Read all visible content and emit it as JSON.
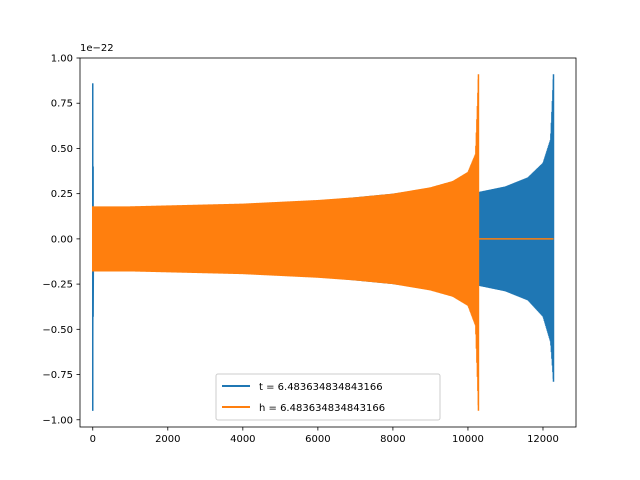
{
  "chart_data": {
    "type": "line",
    "title": "",
    "xlabel": "",
    "ylabel": "",
    "y_offset_label": "1e−22",
    "xlim": [
      -340,
      12880
    ],
    "ylim": [
      -1.04,
      1.0
    ],
    "xticks": [
      0,
      2000,
      4000,
      6000,
      8000,
      10000,
      12000
    ],
    "xtick_labels": [
      "0",
      "2000",
      "4000",
      "6000",
      "8000",
      "10000",
      "12000"
    ],
    "yticks": [
      1.0,
      0.75,
      0.5,
      0.25,
      0.0,
      -0.25,
      -0.5,
      -0.75,
      -1.0
    ],
    "ytick_labels": [
      "1.00",
      "0.75",
      "0.50",
      "0.25",
      "0.00",
      "−0.25",
      "−0.50",
      "−0.75",
      "−1.00"
    ],
    "grid": false,
    "legend_position": "lower center",
    "series": [
      {
        "name": "t = 6.483634834843166",
        "color": "#1f77b4",
        "description_envelope": "oscillating chirp; initial spike near x=0 reaching about +0.86 and -0.95, then envelope grows to a final spike at x about 12280",
        "upper": [
          [
            0,
            0.86
          ],
          [
            20,
            0.17
          ],
          [
            2000,
            0.18
          ],
          [
            4000,
            0.19
          ],
          [
            6000,
            0.21
          ],
          [
            8000,
            0.25
          ],
          [
            9000,
            0.28
          ],
          [
            10000,
            0.26
          ],
          [
            10300,
            0.26
          ],
          [
            11000,
            0.29
          ],
          [
            11600,
            0.34
          ],
          [
            12000,
            0.42
          ],
          [
            12200,
            0.55
          ],
          [
            12280,
            0.91
          ]
        ],
        "lower": [
          [
            0,
            -0.95
          ],
          [
            20,
            -0.17
          ],
          [
            2000,
            -0.18
          ],
          [
            4000,
            -0.19
          ],
          [
            6000,
            -0.21
          ],
          [
            8000,
            -0.25
          ],
          [
            9000,
            -0.28
          ],
          [
            10000,
            -0.26
          ],
          [
            10300,
            -0.26
          ],
          [
            11000,
            -0.29
          ],
          [
            11600,
            -0.34
          ],
          [
            12000,
            -0.43
          ],
          [
            12200,
            -0.57
          ],
          [
            12280,
            -0.79
          ]
        ],
        "flat_after": null
      },
      {
        "name": "h = 6.483634834843166",
        "color": "#ff7f0e",
        "description_envelope": "oscillating chirp from x=0 to about x=10280 with envelope growing to a final spike, then flat at 0 until about x=12280",
        "upper": [
          [
            0,
            0.18
          ],
          [
            1000,
            0.18
          ],
          [
            2000,
            0.185
          ],
          [
            3000,
            0.19
          ],
          [
            4000,
            0.195
          ],
          [
            5000,
            0.205
          ],
          [
            6000,
            0.215
          ],
          [
            7000,
            0.23
          ],
          [
            8000,
            0.25
          ],
          [
            9000,
            0.285
          ],
          [
            9600,
            0.32
          ],
          [
            10000,
            0.37
          ],
          [
            10200,
            0.47
          ],
          [
            10280,
            0.91
          ]
        ],
        "lower": [
          [
            0,
            -0.18
          ],
          [
            1000,
            -0.18
          ],
          [
            2000,
            -0.185
          ],
          [
            3000,
            -0.19
          ],
          [
            4000,
            -0.195
          ],
          [
            5000,
            -0.205
          ],
          [
            6000,
            -0.215
          ],
          [
            7000,
            -0.23
          ],
          [
            8000,
            -0.25
          ],
          [
            9000,
            -0.285
          ],
          [
            9600,
            -0.32
          ],
          [
            10000,
            -0.37
          ],
          [
            10200,
            -0.48
          ],
          [
            10280,
            -0.95
          ]
        ],
        "flat_after": [
          10280,
          12280
        ]
      }
    ]
  }
}
